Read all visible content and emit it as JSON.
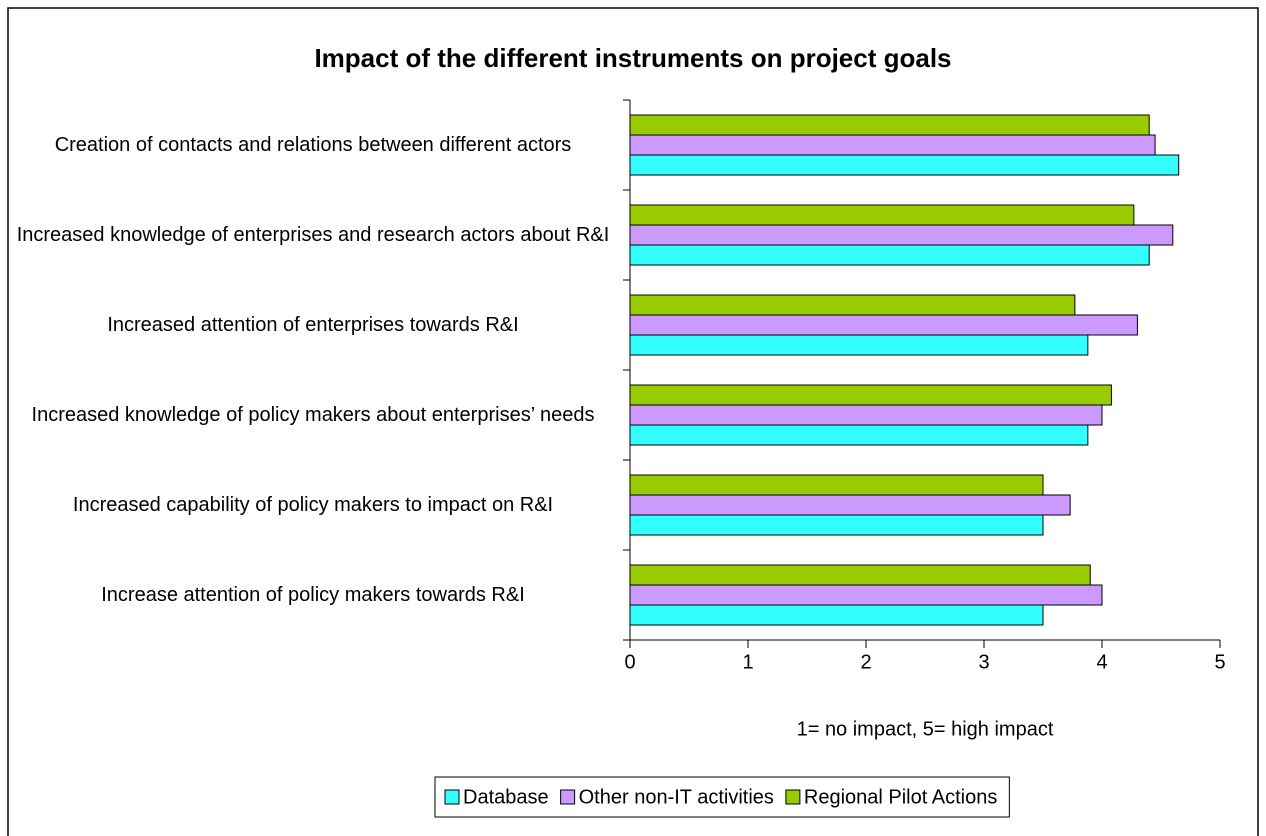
{
  "chart_data": {
    "type": "hbar",
    "title": "Impact of the different instruments on project goals",
    "xlabel": "1= no impact, 5= high impact",
    "categories": [
      "Creation of contacts and relations between different actors",
      "Increased knowledge of enterprises and research actors about R&I",
      "Increased attention of enterprises towards R&I",
      "Increased knowledge of policy makers about enterprises’ needs",
      "Increased capability of policy makers to impact on R&I",
      "Increase attention of policy makers towards R&I"
    ],
    "series": [
      {
        "name": "Database",
        "color": "#33ffff",
        "values": [
          4.65,
          4.4,
          3.88,
          3.88,
          3.5,
          3.5
        ]
      },
      {
        "name": "Other non-IT activities",
        "color": "#cc99ff",
        "values": [
          4.45,
          4.6,
          4.3,
          4.0,
          3.73,
          4.0
        ]
      },
      {
        "name": "Regional Pilot Actions",
        "color": "#99cc00",
        "values": [
          4.4,
          4.27,
          3.77,
          4.08,
          3.5,
          3.9
        ]
      }
    ],
    "xlim": [
      0,
      5
    ],
    "xticks": [
      0,
      1,
      2,
      3,
      4,
      5
    ],
    "grid": false,
    "legend": "bottom"
  }
}
